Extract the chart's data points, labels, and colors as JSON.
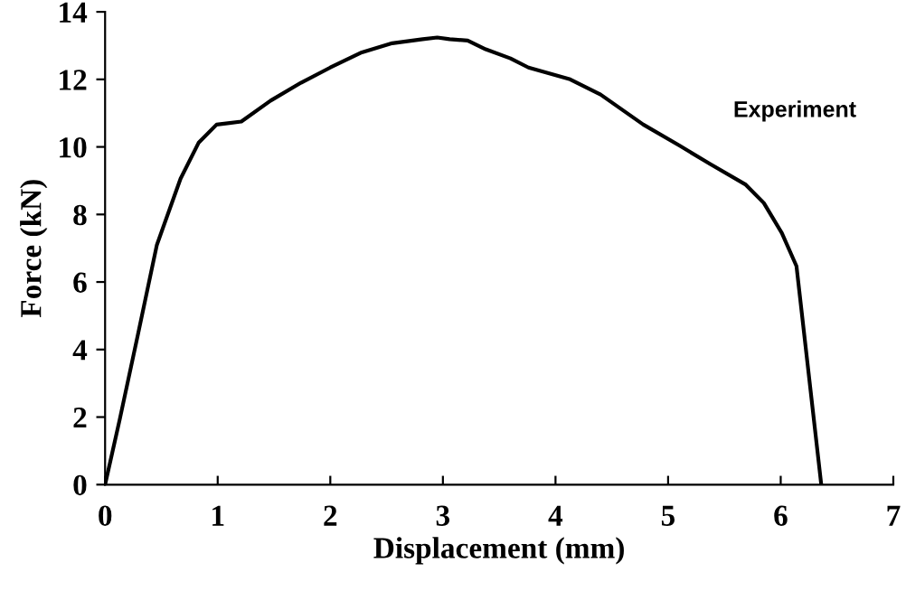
{
  "chart_data": {
    "type": "line",
    "xlabel": "Displacement (mm)",
    "ylabel": "Force (kN)",
    "xlim": [
      0,
      7
    ],
    "ylim": [
      0,
      14
    ],
    "xticks": [
      0,
      1,
      2,
      3,
      4,
      5,
      6,
      7
    ],
    "yticks": [
      0,
      2,
      4,
      6,
      8,
      10,
      12,
      14
    ],
    "grid": false,
    "legend": false,
    "marker": "none",
    "line_style": "solid",
    "series": [
      {
        "name": "Experiment",
        "color": "#000000",
        "x": [
          0,
          0.13,
          0.29,
          0.46,
          0.67,
          0.83,
          0.99,
          1.21,
          1.47,
          1.74,
          2.0,
          2.28,
          2.55,
          2.82,
          2.95,
          3.06,
          3.22,
          3.38,
          3.6,
          3.76,
          4.13,
          4.4,
          4.78,
          5.1,
          5.37,
          5.69,
          5.85,
          6.01,
          6.14,
          6.36
        ],
        "values": [
          0,
          1.93,
          4.42,
          7.1,
          9.06,
          10.12,
          10.66,
          10.75,
          11.37,
          11.9,
          12.35,
          12.8,
          13.07,
          13.19,
          13.24,
          13.19,
          13.15,
          12.89,
          12.62,
          12.35,
          12.0,
          11.55,
          10.66,
          10.04,
          9.5,
          8.88,
          8.34,
          7.45,
          6.47,
          0
        ]
      }
    ]
  }
}
